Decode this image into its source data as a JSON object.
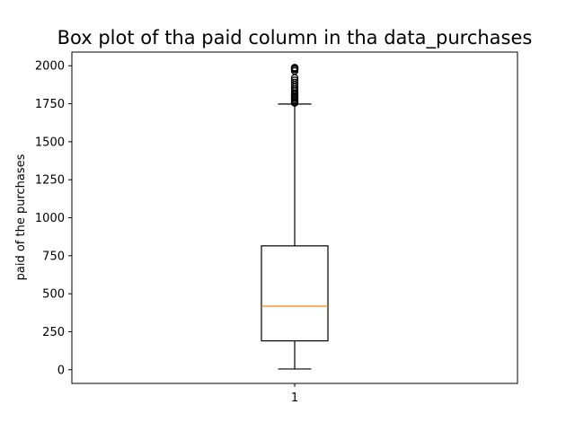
{
  "chart_data": {
    "type": "box",
    "title": "Box plot of tha paid column in tha data_purchases",
    "xlabel": "",
    "ylabel": "paid of the purchases",
    "categories": [
      "1"
    ],
    "ylim": [
      -90,
      2090
    ],
    "yticks": [
      0,
      250,
      500,
      750,
      1000,
      1250,
      1500,
      1750,
      2000
    ],
    "grid": false,
    "boxes": [
      {
        "name": "1",
        "whisker_low": 5,
        "q1": 190,
        "median": 418,
        "q3": 815,
        "whisker_high": 1748,
        "outliers": [
          1755,
          1762,
          1770,
          1778,
          1787,
          1795,
          1803,
          1812,
          1820,
          1832,
          1845,
          1860,
          1875,
          1890,
          1905,
          1920,
          1965,
          1975,
          1980,
          1985,
          1988
        ]
      }
    ],
    "colors": {
      "box": "#000000",
      "median": "#ff7f0e",
      "outlier": "#000000"
    }
  }
}
